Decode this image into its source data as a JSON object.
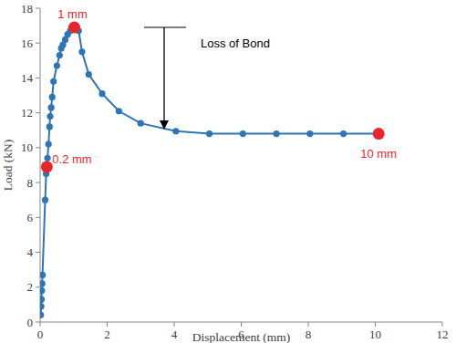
{
  "chart_data": {
    "type": "line",
    "x_label": "Displacement (mm)",
    "y_label": "Load (kN)",
    "x": [
      0.02,
      0.03,
      0.04,
      0.05,
      0.06,
      0.07,
      0.15,
      0.18,
      0.2,
      0.22,
      0.25,
      0.28,
      0.3,
      0.33,
      0.36,
      0.4,
      0.5,
      0.58,
      0.63,
      0.68,
      0.75,
      0.82,
      0.9,
      1.0,
      1.05,
      1.15,
      1.25,
      1.45,
      1.85,
      2.35,
      3.0,
      4.05,
      5.05,
      6.05,
      7.05,
      8.05,
      9.05,
      10.1
    ],
    "values": [
      0.4,
      0.9,
      1.3,
      1.8,
      2.2,
      2.7,
      7.0,
      8.5,
      8.9,
      9.4,
      10.2,
      11.2,
      11.8,
      12.3,
      12.9,
      13.8,
      14.7,
      15.3,
      15.7,
      15.9,
      16.2,
      16.5,
      16.7,
      16.9,
      16.9,
      16.7,
      15.5,
      14.2,
      13.1,
      12.1,
      11.4,
      10.95,
      10.8,
      10.8,
      10.8,
      10.8,
      10.8,
      10.8
    ],
    "color": "#2e75b6",
    "marker": "circle",
    "xlim": [
      0,
      12
    ],
    "xticks": [
      0,
      2,
      4,
      6,
      8,
      10,
      12
    ],
    "ylim": [
      0,
      18
    ],
    "yticks": [
      0,
      2,
      4,
      6,
      8,
      10,
      12,
      14,
      16,
      18
    ],
    "grid": false,
    "highlights": [
      {
        "x": 0.2,
        "y": 8.9,
        "label": "0.2 mm",
        "color": "#e8262a"
      },
      {
        "x": 1.02,
        "y": 16.9,
        "label": "1 mm",
        "color": "#e8262a"
      },
      {
        "x": 10.1,
        "y": 10.8,
        "label": "10 mm",
        "color": "#e8262a"
      }
    ],
    "annotations": [
      {
        "text": "Loss of Bond",
        "x": 3.7,
        "y_start": 16.9,
        "y_end": 11.1
      }
    ]
  }
}
